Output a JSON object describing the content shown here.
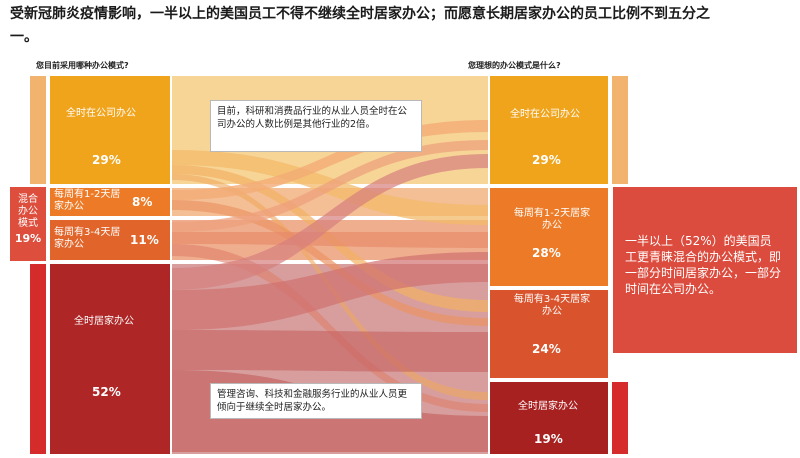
{
  "title": "受新冠肺炎疫情影响，一半以上的美国员工不得不继续全时居家办公；而愿意长期居家办公的员工比例不到五分之一。",
  "left_header": "您目前采用哪种办公模式?",
  "right_header": "您理想的办公模式是什么?",
  "hybrid": {
    "label": "混合办公模式",
    "pct": "19%"
  },
  "left_nodes": [
    {
      "label": "全时在公司办公",
      "pct": "29%",
      "color": "#f0a41c"
    },
    {
      "label": "每周有1-2天居家办公",
      "pct": "8%",
      "color": "#ec7a26"
    },
    {
      "label": "每周有3-4天居家办公",
      "pct": "11%",
      "color": "#e1652a"
    },
    {
      "label": "全时居家办公",
      "pct": "52%",
      "color": "#ae2626"
    }
  ],
  "right_nodes": [
    {
      "label": "全时在公司办公",
      "pct": "29%",
      "color": "#f0a41c"
    },
    {
      "label": "每周有1-2天居家办公",
      "pct": "28%",
      "color": "#ec7a26"
    },
    {
      "label": "每周有3-4天居家办公",
      "pct": "24%",
      "color": "#d9532c"
    },
    {
      "label": "全时居家办公",
      "pct": "19%",
      "color": "#a82121"
    }
  ],
  "annotations": {
    "top": "目前，科研和消费品行业的从业人员全时在公司办公的人数比例是其他行业的2倍。",
    "bottom": "管理咨询、科技和金融服务行业的从业人员更倾向于继续全时居家办公。"
  },
  "callout": "一半以上（52%）的美国员工更青睐混合的办公模式，即一部分时间居家办公，一部分时间在公司办公。",
  "colors": {
    "strip_orange": "#f2b36e",
    "strip_red": "#d52b2b",
    "flow_gold": "#f4c46b",
    "flow_orange": "#f0a56a",
    "flow_red": "#d98a86"
  }
}
